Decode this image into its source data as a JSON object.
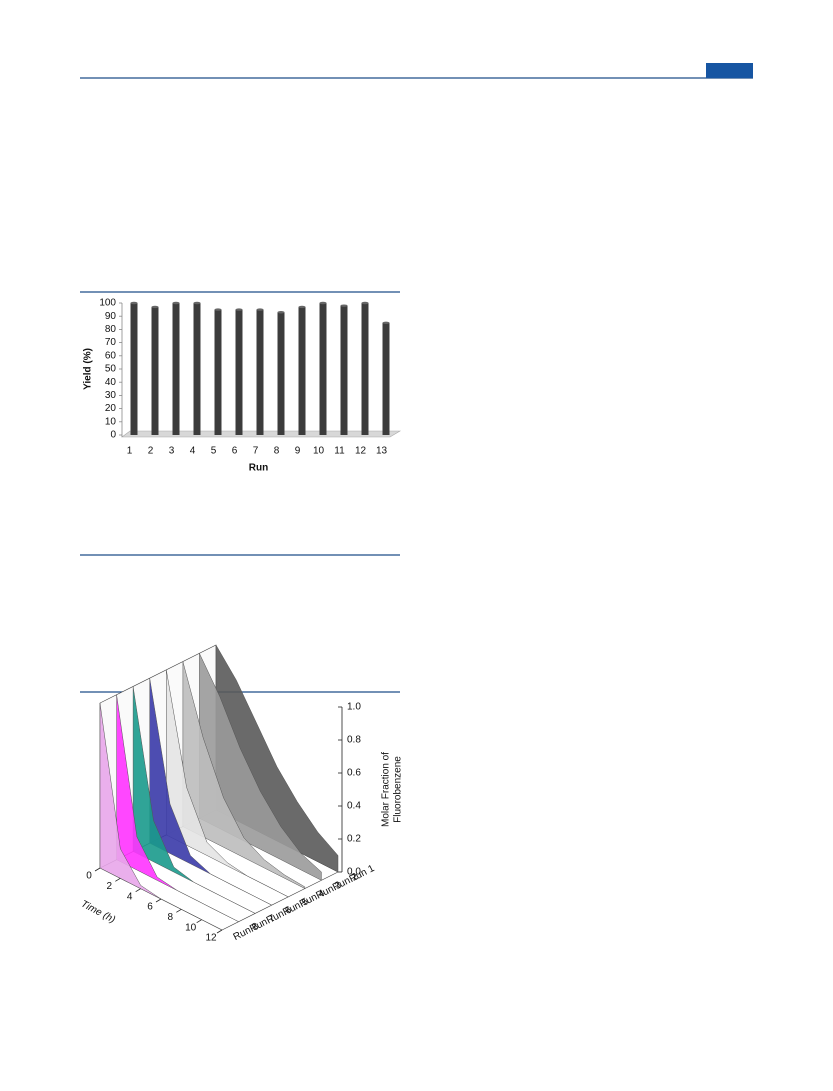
{
  "chart_data": [
    {
      "type": "bar",
      "ylabel": "Yield (%)",
      "xlabel": "Run",
      "categories": [
        "1",
        "2",
        "3",
        "4",
        "5",
        "6",
        "7",
        "8",
        "9",
        "10",
        "11",
        "12",
        "13"
      ],
      "values": [
        100,
        97,
        100,
        100,
        95,
        95,
        95,
        93,
        97,
        100,
        98,
        100,
        85
      ],
      "color": "#3c3c3c",
      "ylim": [
        0,
        100
      ],
      "yticks": [
        0,
        10,
        20,
        30,
        40,
        50,
        60,
        70,
        80,
        90,
        100
      ]
    },
    {
      "type": "waterfall3d",
      "xlabel": "Time (h)",
      "zlabel": [
        "Molar Fraction of",
        "Fluorobenzene"
      ],
      "x": [
        0,
        2,
        4,
        6,
        8,
        10,
        12
      ],
      "xlim": [
        0,
        12
      ],
      "xticks": [
        0,
        2,
        4,
        6,
        8,
        10,
        12
      ],
      "zlim": [
        0,
        1
      ],
      "zticks": [
        {
          "value": 0,
          "label": "0.0"
        },
        0.2,
        0.4,
        0.6,
        0.8,
        {
          "value": 1,
          "label": "1.0"
        }
      ],
      "series": [
        {
          "name": "Run 1",
          "color": "#5a5a5a",
          "values": [
            1,
            0.85,
            0.65,
            0.45,
            0.3,
            0.18,
            0.1
          ]
        },
        {
          "name": "Run 2",
          "color": "#9a9a9a",
          "values": [
            1,
            0.8,
            0.55,
            0.35,
            0.2,
            0.1,
            0.05
          ]
        },
        {
          "name": "Run 3",
          "color": "#bdbdbd",
          "values": [
            1,
            0.6,
            0.3,
            0.12,
            0.05,
            0.02,
            0.01
          ]
        },
        {
          "name": "Run 4",
          "color": "#e4e4e4",
          "values": [
            1,
            0.35,
            0.08,
            0.02,
            0,
            0,
            0
          ]
        },
        {
          "name": "Run 5",
          "color": "#3a3aa8",
          "values": [
            1,
            0.3,
            0.05,
            0,
            0,
            0,
            0
          ]
        },
        {
          "name": "Run 6",
          "color": "#1a9a8c",
          "values": [
            1,
            0.25,
            0.03,
            0,
            0,
            0,
            0
          ]
        },
        {
          "name": "Run 7",
          "color": "#ff33ff",
          "values": [
            1,
            0.2,
            0.02,
            0,
            0,
            0,
            0
          ]
        },
        {
          "name": "Run 8",
          "color": "#e8a6ea",
          "values": [
            1,
            0.18,
            0.02,
            0,
            0,
            0,
            0
          ]
        }
      ]
    }
  ]
}
